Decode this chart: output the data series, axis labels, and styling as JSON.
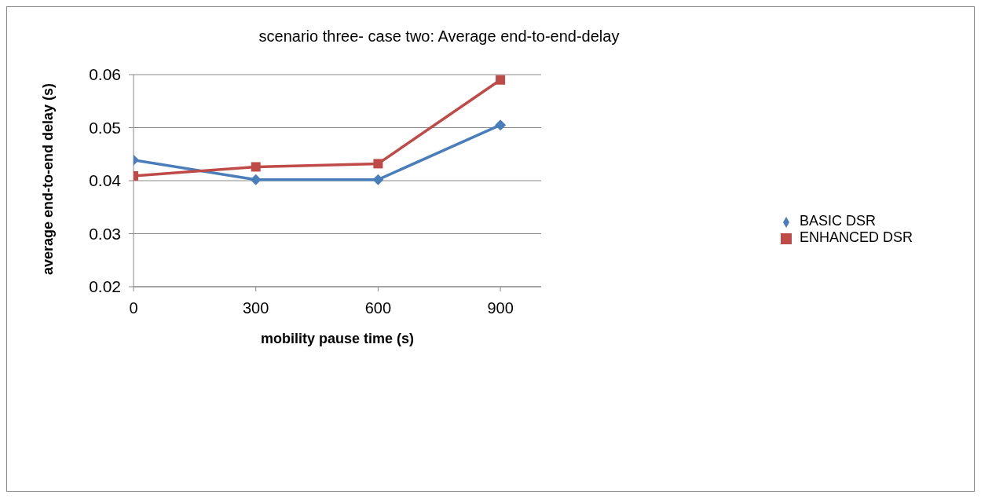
{
  "chart_data": {
    "type": "line",
    "title": "scenario three- case two: Average end-to-end-delay",
    "xlabel": "mobility pause time (s)",
    "ylabel": "average end-to-end delay (s)",
    "x": [
      0,
      300,
      600,
      900
    ],
    "series": [
      {
        "name": "BASIC DSR",
        "color": "#4a7ebb",
        "marker": "diamond",
        "values": [
          0.0439,
          0.0402,
          0.0402,
          0.0505
        ]
      },
      {
        "name": "ENHANCED DSR",
        "color": "#be4b48",
        "marker": "square",
        "values": [
          0.0409,
          0.0426,
          0.0432,
          0.059
        ]
      }
    ],
    "xlim": [
      0,
      1000
    ],
    "xticks": [
      0,
      300,
      600,
      900
    ],
    "ylim": [
      0.02,
      0.06
    ],
    "yticks": [
      0.02,
      0.03,
      0.04,
      0.05,
      0.06
    ],
    "grid": "y",
    "legend": "right",
    "line_style": "solid"
  }
}
